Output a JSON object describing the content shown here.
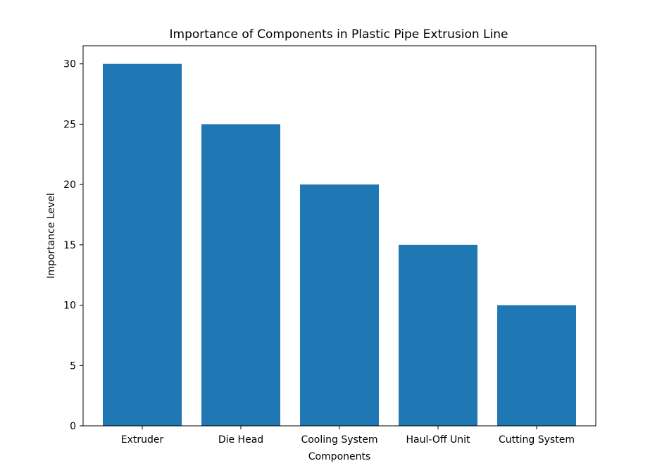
{
  "chart_data": {
    "type": "bar",
    "title": "Importance of Components in Plastic Pipe Extrusion Line",
    "xlabel": "Components",
    "ylabel": "Importance Level",
    "categories": [
      "Extruder",
      "Die Head",
      "Cooling System",
      "Haul-Off Unit",
      "Cutting System"
    ],
    "values": [
      30,
      25,
      20,
      15,
      10
    ],
    "ylim": [
      0,
      31.5
    ],
    "yticks": [
      0,
      5,
      10,
      15,
      20,
      25,
      30
    ],
    "bar_color": "#1f77b4",
    "grid": false,
    "legend": "none"
  }
}
